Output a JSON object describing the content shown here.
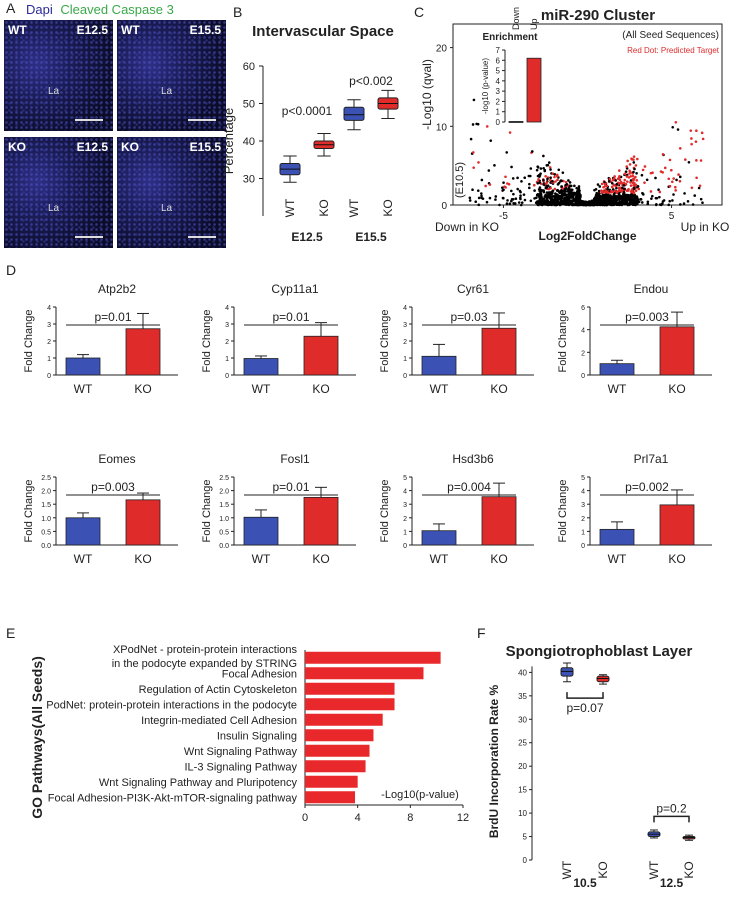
{
  "panel_labels": {
    "A": "A",
    "B": "B",
    "C": "C",
    "D": "D",
    "E": "E",
    "F": "F"
  },
  "panelA": {
    "legend_dapi": "Dapi",
    "legend_caspase": "Cleaved Caspase 3",
    "images": [
      {
        "genotype": "WT",
        "stage": "E12.5",
        "region": "La"
      },
      {
        "genotype": "WT",
        "stage": "E15.5",
        "region": "La"
      },
      {
        "genotype": "KO",
        "stage": "E12.5",
        "region": "La"
      },
      {
        "genotype": "KO",
        "stage": "E15.5",
        "region": "La"
      }
    ],
    "colors": {
      "dapi": "#2a2a9a",
      "caspase": "#3aa84a"
    }
  },
  "chart_data": [
    {
      "panel": "B",
      "type": "box",
      "title": "Intervascular Space",
      "ylabel": "Percentage",
      "ylim": [
        20,
        60
      ],
      "yticks": [
        30,
        40,
        50,
        60
      ],
      "groups": [
        {
          "label": "E12.5",
          "pvalue": "p<0.0001",
          "boxes": [
            {
              "name": "WT",
              "min": 29,
              "q1": 31,
              "median": 32.5,
              "q3": 34,
              "max": 36,
              "color": "#3b52b4"
            },
            {
              "name": "KO",
              "min": 36,
              "q1": 38,
              "median": 39,
              "q3": 40,
              "max": 42,
              "color": "#e02b2b"
            }
          ]
        },
        {
          "label": "E15.5",
          "pvalue": "p<0.002",
          "boxes": [
            {
              "name": "WT",
              "min": 43,
              "q1": 45.5,
              "median": 47,
              "q3": 49,
              "max": 51,
              "color": "#3b52b4"
            },
            {
              "name": "KO",
              "min": 46,
              "q1": 48.5,
              "median": 50,
              "q3": 51.5,
              "max": 53.5,
              "color": "#e02b2b"
            }
          ]
        }
      ]
    },
    {
      "panel": "C",
      "type": "scatter",
      "title": "miR-290 Cluster",
      "xlabel": "Log2FoldChange",
      "ylabel": "-Log10 (qval)",
      "stage_label": "(E10.5)",
      "xlim": [
        -8,
        8
      ],
      "ylim": [
        0,
        23
      ],
      "xticks": [
        -5,
        5
      ],
      "yticks": [
        0,
        10,
        20
      ],
      "x_left_label": "Down in KO",
      "x_right_label": "Up in KO",
      "legend_all": "(All Seed Sequences)",
      "legend_red": "Red Dot: Predicted Target",
      "inset": {
        "title": "Enrichment",
        "ylabel": "-log10 (p-value)",
        "yticks": [
          0,
          1,
          2,
          3,
          4,
          5,
          6,
          7
        ],
        "bars": [
          {
            "name": "Down",
            "value": 0.05
          },
          {
            "name": "Up",
            "value": 6.2
          }
        ]
      },
      "colors": {
        "all": "#000000",
        "target": "#e02b2b"
      }
    },
    {
      "panel": "D",
      "type": "bar",
      "ylabel": "Fold Change",
      "categories": [
        "WT",
        "KO"
      ],
      "colors": {
        "WT": "#3b52b4",
        "KO": "#e02b2b"
      },
      "genes": [
        {
          "name": "Atp2b2",
          "pvalue": "p=0.01",
          "ymax": 4,
          "yticks": [
            0,
            1,
            2,
            3,
            4
          ],
          "wt": 1.0,
          "wt_err": 0.2,
          "ko": 2.72,
          "ko_err": 0.9
        },
        {
          "name": "Cyp11a1",
          "pvalue": "p=0.01",
          "ymax": 4,
          "yticks": [
            0,
            1,
            2,
            3,
            4
          ],
          "wt": 0.97,
          "wt_err": 0.15,
          "ko": 2.28,
          "ko_err": 0.8
        },
        {
          "name": "Cyr61",
          "pvalue": "p=0.03",
          "ymax": 4,
          "yticks": [
            0,
            1,
            2,
            3,
            4
          ],
          "wt": 1.1,
          "wt_err": 0.7,
          "ko": 2.75,
          "ko_err": 0.9
        },
        {
          "name": "Endou",
          "pvalue": "p=0.003",
          "ymax": 6,
          "yticks": [
            0,
            2,
            4,
            6
          ],
          "wt": 1.0,
          "wt_err": 0.3,
          "ko": 4.25,
          "ko_err": 1.3
        },
        {
          "name": "Eomes",
          "pvalue": "p=0.003",
          "ymax": 2.5,
          "yticks": [
            0.0,
            0.5,
            1.0,
            1.5,
            2.0,
            2.5
          ],
          "wt": 1.0,
          "wt_err": 0.18,
          "ko": 1.66,
          "ko_err": 0.25
        },
        {
          "name": "Fosl1",
          "pvalue": "p=0.01",
          "ymax": 2.5,
          "yticks": [
            0.0,
            0.5,
            1.0,
            1.5,
            2.0,
            2.5
          ],
          "wt": 1.02,
          "wt_err": 0.27,
          "ko": 1.75,
          "ko_err": 0.37
        },
        {
          "name": "Hsd3b6",
          "pvalue": "p=0.004",
          "ymax": 5,
          "yticks": [
            0,
            1,
            2,
            3,
            4,
            5
          ],
          "wt": 1.05,
          "wt_err": 0.5,
          "ko": 3.55,
          "ko_err": 1.0
        },
        {
          "name": "Prl7a1",
          "pvalue": "p=0.002",
          "ymax": 5,
          "yticks": [
            0,
            1,
            2,
            3,
            4,
            5
          ],
          "wt": 1.15,
          "wt_err": 0.55,
          "ko": 2.95,
          "ko_err": 1.1
        }
      ]
    },
    {
      "panel": "E",
      "type": "bar",
      "orientation": "horizontal",
      "ylabel": "GO Pathways(All Seeds)",
      "xlabel": "-Log10(p-value)",
      "xlim": [
        0,
        12
      ],
      "xticks": [
        0,
        4,
        8,
        12
      ],
      "color": "#e8282a",
      "categories": [
        "XPodNet - protein-protein interactions|in the podocyte expanded by STRING",
        "Focal Adhesion",
        "Regulation of Actin Cytoskeleton",
        "PodNet: protein-protein interactions in the podocyte",
        "Integrin-mediated Cell Adhesion",
        "Insulin Signaling",
        "Wnt Signaling Pathway",
        "IL-3 Signaling Pathway",
        "Wnt Signaling Pathway and Pluripotency",
        "Focal Adhesion-PI3K-Akt-mTOR-signaling pathway"
      ],
      "values": [
        10.3,
        9.0,
        6.8,
        6.8,
        5.9,
        5.2,
        4.9,
        4.6,
        4.0,
        3.8
      ]
    },
    {
      "panel": "F",
      "type": "box",
      "title": "Spongiotrophoblast Layer",
      "ylabel": "BrdU Incorporation Rate %",
      "ylim": [
        0,
        42
      ],
      "yticks": [
        0,
        5,
        10,
        15,
        20,
        25,
        30,
        35,
        40
      ],
      "groups": [
        {
          "label": "10.5",
          "pvalue": "p=0.07",
          "boxes": [
            {
              "name": "WT",
              "min": 38,
              "q1": 39.2,
              "median": 40.2,
              "q3": 41,
              "max": 42,
              "color": "#3b52b4"
            },
            {
              "name": "KO",
              "min": 37.5,
              "q1": 38,
              "median": 38.7,
              "q3": 39.2,
              "max": 39.5,
              "color": "#e02b2b"
            }
          ]
        },
        {
          "label": "12.5",
          "pvalue": "p=0.2",
          "boxes": [
            {
              "name": "WT",
              "min": 4.7,
              "q1": 5.0,
              "median": 5.5,
              "q3": 6.0,
              "max": 6.4,
              "color": "#3b52b4"
            },
            {
              "name": "KO",
              "min": 4.2,
              "q1": 4.5,
              "median": 4.8,
              "q3": 5.0,
              "max": 5.3,
              "color": "#e02b2b"
            }
          ]
        }
      ]
    }
  ]
}
